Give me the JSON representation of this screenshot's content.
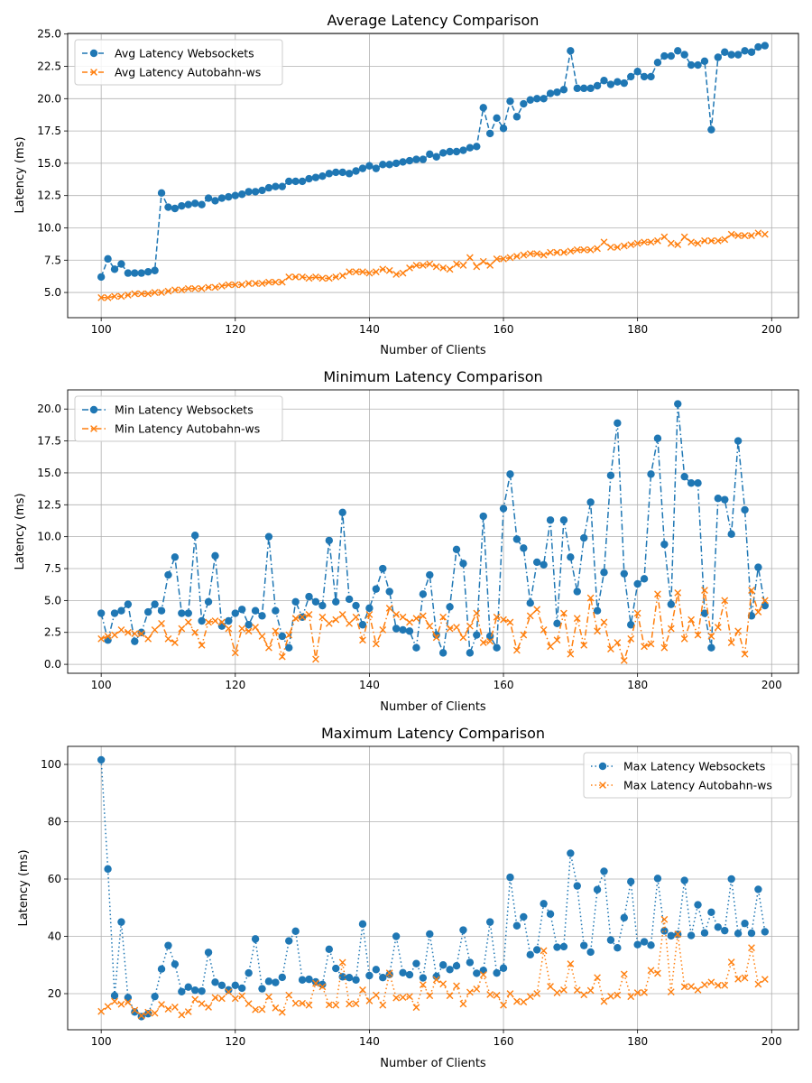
{
  "colors": {
    "websockets": "#1f77b4",
    "autobahn": "#ff7f0e",
    "grid": "#b0b0b0"
  },
  "chart_data": [
    {
      "type": "line",
      "title": "Average Latency Comparison",
      "xlabel": "Number of Clients",
      "ylabel": "Latency (ms)",
      "xlim": [
        95,
        204
      ],
      "ylim": [
        3.05,
        25.05
      ],
      "xticks": [
        100,
        120,
        140,
        160,
        180,
        200
      ],
      "yticks": [
        5.0,
        7.5,
        10.0,
        12.5,
        15.0,
        17.5,
        20.0,
        22.5,
        25.0
      ],
      "ytick_labels": [
        "5.0",
        "7.5",
        "10.0",
        "12.5",
        "15.0",
        "17.5",
        "20.0",
        "22.5",
        "25.0"
      ],
      "legend_position": "upper left",
      "x_start": 100,
      "series": [
        {
          "name": "Avg Latency Websockets",
          "marker": "circle",
          "linestyle": "dashed",
          "color_key": "websockets",
          "values": [
            6.2,
            7.6,
            6.8,
            7.2,
            6.5,
            6.5,
            6.5,
            6.6,
            6.7,
            12.7,
            11.6,
            11.5,
            11.7,
            11.8,
            11.9,
            11.8,
            12.3,
            12.1,
            12.3,
            12.4,
            12.5,
            12.6,
            12.8,
            12.8,
            12.9,
            13.1,
            13.2,
            13.2,
            13.6,
            13.6,
            13.6,
            13.8,
            13.9,
            14.0,
            14.2,
            14.3,
            14.3,
            14.2,
            14.4,
            14.6,
            14.8,
            14.6,
            14.9,
            14.9,
            15.0,
            15.1,
            15.2,
            15.3,
            15.3,
            15.7,
            15.5,
            15.8,
            15.9,
            15.9,
            16.0,
            16.2,
            16.3,
            19.3,
            17.3,
            18.5,
            17.7,
            19.8,
            18.6,
            19.6,
            19.9,
            20.0,
            20.0,
            20.4,
            20.5,
            20.7,
            23.7,
            20.8,
            20.8,
            20.8,
            21.0,
            21.4,
            21.1,
            21.3,
            21.2,
            21.7,
            22.1,
            21.7,
            21.7,
            22.8,
            23.3,
            23.3,
            23.7,
            23.4,
            22.6,
            22.6,
            22.9,
            17.6,
            23.2,
            23.6,
            23.4,
            23.4,
            23.7,
            23.6,
            24.0,
            24.1
          ]
        },
        {
          "name": "Avg Latency Autobahn-ws",
          "marker": "x",
          "linestyle": "dashed",
          "color_key": "autobahn",
          "values": [
            4.6,
            4.6,
            4.7,
            4.7,
            4.8,
            4.9,
            4.9,
            4.9,
            5.0,
            5.0,
            5.1,
            5.2,
            5.2,
            5.3,
            5.3,
            5.3,
            5.4,
            5.4,
            5.5,
            5.6,
            5.6,
            5.6,
            5.7,
            5.7,
            5.7,
            5.8,
            5.8,
            5.8,
            6.2,
            6.2,
            6.2,
            6.1,
            6.2,
            6.1,
            6.1,
            6.2,
            6.3,
            6.6,
            6.6,
            6.6,
            6.5,
            6.6,
            6.8,
            6.7,
            6.4,
            6.5,
            6.9,
            7.1,
            7.1,
            7.2,
            7.0,
            6.9,
            6.8,
            7.2,
            7.1,
            7.7,
            7.0,
            7.4,
            7.1,
            7.6,
            7.6,
            7.7,
            7.8,
            7.9,
            8.0,
            8.0,
            7.9,
            8.1,
            8.1,
            8.1,
            8.2,
            8.3,
            8.3,
            8.3,
            8.4,
            8.9,
            8.5,
            8.5,
            8.6,
            8.7,
            8.8,
            8.9,
            8.9,
            9.0,
            9.3,
            8.8,
            8.7,
            9.3,
            8.9,
            8.8,
            9.0,
            9.0,
            9.0,
            9.1,
            9.5,
            9.4,
            9.4,
            9.4,
            9.6,
            9.5
          ]
        }
      ]
    },
    {
      "type": "line",
      "title": "Minimum Latency Comparison",
      "xlabel": "Number of Clients",
      "ylabel": "Latency (ms)",
      "xlim": [
        95,
        204
      ],
      "ylim": [
        -0.7,
        21.5
      ],
      "xticks": [
        100,
        120,
        140,
        160,
        180,
        200
      ],
      "yticks": [
        0.0,
        2.5,
        5.0,
        7.5,
        10.0,
        12.5,
        15.0,
        17.5,
        20.0
      ],
      "ytick_labels": [
        "0.0",
        "2.5",
        "5.0",
        "7.5",
        "10.0",
        "12.5",
        "15.0",
        "17.5",
        "20.0"
      ],
      "legend_position": "upper left",
      "x_start": 100,
      "series": [
        {
          "name": "Min Latency Websockets",
          "marker": "circle",
          "linestyle": "dashdot",
          "color_key": "websockets",
          "values": [
            4.0,
            1.9,
            4.0,
            4.2,
            4.7,
            1.8,
            2.5,
            4.1,
            4.7,
            4.2,
            7.0,
            8.4,
            4.0,
            4.0,
            10.1,
            3.4,
            4.9,
            8.5,
            3.0,
            3.4,
            4.0,
            4.3,
            3.1,
            4.2,
            3.8,
            10.0,
            4.2,
            2.2,
            1.3,
            4.9,
            3.7,
            5.3,
            4.9,
            4.6,
            9.7,
            4.9,
            11.9,
            5.1,
            4.6,
            3.1,
            4.4,
            5.9,
            7.5,
            5.7,
            2.8,
            2.7,
            2.6,
            1.3,
            5.5,
            7.0,
            2.3,
            0.9,
            4.5,
            9.0,
            7.9,
            0.9,
            2.3,
            11.6,
            2.2,
            1.3,
            12.2,
            14.9,
            9.8,
            9.1,
            4.8,
            8.0,
            7.8,
            11.3,
            3.2,
            11.3,
            8.4,
            5.7,
            9.9,
            12.7,
            4.2,
            7.2,
            14.8,
            18.9,
            7.1,
            3.1,
            6.3,
            6.7,
            14.9,
            17.7,
            9.4,
            4.7,
            20.4,
            14.7,
            14.2,
            14.2,
            4.0,
            1.3,
            13.0,
            12.9,
            10.2,
            17.5,
            12.1,
            3.8,
            7.6,
            4.6
          ]
        },
        {
          "name": "Min Latency Autobahn-ws",
          "marker": "x",
          "linestyle": "dashdot",
          "color_key": "autobahn",
          "values": [
            2.0,
            2.2,
            2.3,
            2.7,
            2.5,
            2.4,
            2.4,
            2.0,
            2.7,
            3.2,
            2.0,
            1.7,
            2.8,
            3.3,
            2.5,
            1.5,
            3.3,
            3.4,
            3.3,
            2.8,
            0.9,
            2.8,
            2.6,
            2.9,
            2.2,
            1.3,
            2.6,
            0.6,
            2.3,
            3.6,
            3.7,
            3.9,
            0.4,
            3.7,
            3.2,
            3.5,
            3.9,
            3.2,
            3.7,
            1.9,
            3.9,
            1.6,
            2.7,
            4.4,
            3.9,
            3.7,
            3.3,
            3.6,
            3.8,
            3.0,
            2.1,
            3.7,
            2.8,
            2.9,
            2.1,
            3.0,
            4.0,
            1.7,
            1.8,
            3.7,
            3.5,
            3.3,
            1.1,
            2.3,
            3.8,
            4.3,
            2.7,
            1.4,
            1.9,
            4.0,
            0.8,
            3.6,
            1.5,
            5.2,
            2.6,
            3.3,
            1.2,
            1.7,
            0.3,
            2.0,
            4.0,
            1.4,
            1.6,
            5.5,
            1.3,
            2.8,
            5.6,
            2.0,
            3.5,
            2.3,
            5.8,
            2.2,
            2.9,
            5.0,
            1.7,
            2.6,
            0.8,
            5.8,
            4.1,
            5.0
          ]
        }
      ]
    },
    {
      "type": "line",
      "title": "Maximum Latency Comparison",
      "xlabel": "Number of Clients",
      "ylabel": "Latency (ms)",
      "xlim": [
        95,
        204
      ],
      "ylim": [
        7.4,
        106.3
      ],
      "xticks": [
        100,
        120,
        140,
        160,
        180,
        200
      ],
      "yticks": [
        20,
        40,
        60,
        80,
        100
      ],
      "ytick_labels": [
        "20",
        "40",
        "60",
        "80",
        "100"
      ],
      "legend_position": "upper right",
      "x_start": 100,
      "series": [
        {
          "name": "Max Latency Websockets",
          "marker": "circle",
          "linestyle": "dotted",
          "color_key": "websockets",
          "values": [
            101.6,
            63.5,
            19.3,
            45.0,
            18.6,
            13.6,
            12.0,
            13.0,
            19.0,
            28.6,
            36.8,
            30.3,
            20.7,
            22.3,
            21.2,
            20.9,
            34.4,
            24.0,
            22.9,
            21.3,
            22.9,
            21.9,
            27.2,
            39.1,
            21.7,
            24.3,
            23.9,
            25.7,
            38.4,
            41.8,
            24.8,
            25.0,
            24.1,
            23.2,
            35.5,
            28.8,
            25.9,
            25.6,
            24.8,
            44.3,
            26.3,
            28.4,
            25.6,
            26.7,
            40.0,
            27.3,
            26.6,
            30.5,
            25.5,
            40.8,
            26.0,
            30.0,
            28.4,
            29.7,
            42.2,
            30.9,
            27.1,
            28.1,
            45.0,
            27.2,
            28.9,
            60.6,
            43.7,
            46.8,
            33.6,
            35.3,
            51.4,
            47.8,
            36.2,
            36.4,
            69.0,
            57.6,
            36.8,
            34.5,
            56.3,
            62.7,
            38.7,
            36.0,
            46.5,
            59.1,
            37.1,
            38.1,
            36.9,
            60.2,
            41.9,
            40.2,
            40.7,
            59.5,
            40.3,
            51.0,
            41.2,
            48.4,
            43.2,
            42.0,
            60.0,
            41.0,
            44.5,
            41.1,
            56.4,
            41.6
          ]
        },
        {
          "name": "Max Latency Autobahn-ws",
          "marker": "x",
          "linestyle": "dotted",
          "color_key": "autobahn",
          "values": [
            13.8,
            15.5,
            17.3,
            16.3,
            17.0,
            14.2,
            12.3,
            13.5,
            13.2,
            16.2,
            14.6,
            15.3,
            12.6,
            13.7,
            18.0,
            16.5,
            15.3,
            18.6,
            18.3,
            20.6,
            18.3,
            19.2,
            16.5,
            14.4,
            14.5,
            18.9,
            15.0,
            13.5,
            19.5,
            16.6,
            16.6,
            16.0,
            23.6,
            22.4,
            16.1,
            16.0,
            30.9,
            16.4,
            16.5,
            21.3,
            17.5,
            19.5,
            16.0,
            27.2,
            18.5,
            18.7,
            19.0,
            15.2,
            23.1,
            19.3,
            24.9,
            23.4,
            19.3,
            22.7,
            16.4,
            20.5,
            21.6,
            26.6,
            19.7,
            19.4,
            16.0,
            20.0,
            17.3,
            17.1,
            19.0,
            20.0,
            35.0,
            22.5,
            20.3,
            21.3,
            30.4,
            21.2,
            19.6,
            21.1,
            25.6,
            17.3,
            19.1,
            19.5,
            26.8,
            19.0,
            20.3,
            20.4,
            28.1,
            27.1,
            45.9,
            20.6,
            40.8,
            22.4,
            22.5,
            21.3,
            23.1,
            24.0,
            22.9,
            22.9,
            31.0,
            25.1,
            25.5,
            36.0,
            23.3,
            25.0
          ]
        }
      ]
    }
  ]
}
